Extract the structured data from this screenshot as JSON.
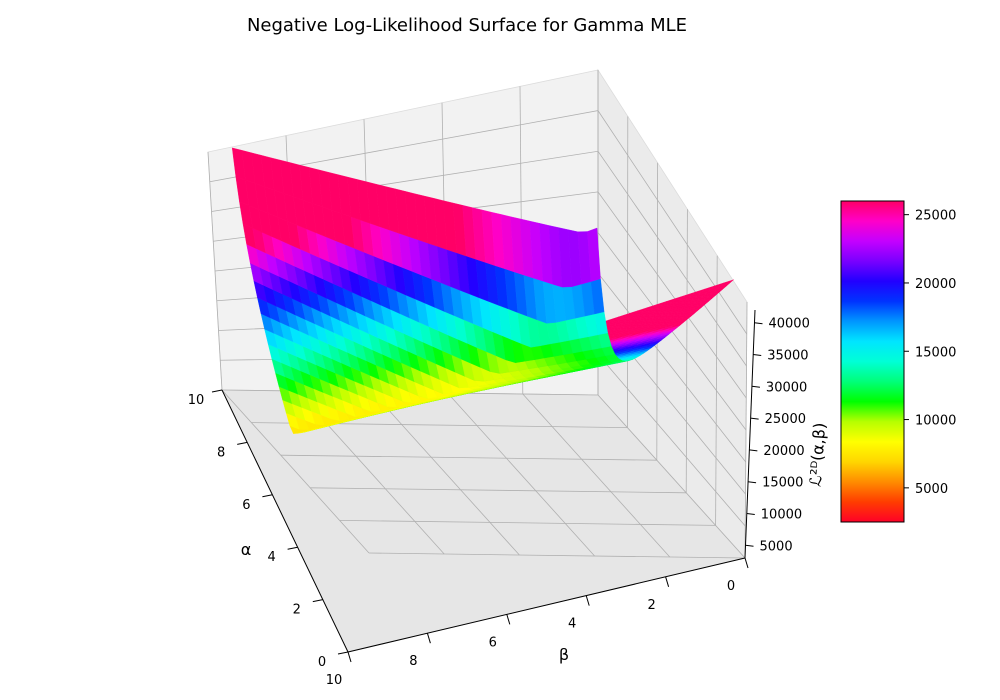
{
  "chart_data": {
    "type": "surface",
    "title": "Negative Log-Likelihood Surface for Gamma MLE",
    "xlabel": "β",
    "ylabel": "α",
    "zlabel": "ℒ²ᴰ(α,β)",
    "xlim": [
      0,
      10
    ],
    "ylim": [
      0,
      10
    ],
    "zlim": [
      3000,
      42000
    ],
    "x_ticks": [
      "0",
      "2",
      "4",
      "6",
      "8",
      "10"
    ],
    "y_ticks": [
      "0",
      "2",
      "4",
      "6",
      "8",
      "10"
    ],
    "z_ticks": [
      "5000",
      "10000",
      "15000",
      "20000",
      "25000",
      "30000",
      "35000",
      "40000"
    ],
    "colormap": "gist_rainbow",
    "grid": true,
    "colorbar": {
      "position": "right",
      "range": [
        2500,
        26000
      ],
      "ticks": [
        "5000",
        "10000",
        "15000",
        "20000",
        "25000"
      ],
      "stops": [
        "#ff0028",
        "#ff3d00",
        "#ff8c00",
        "#ffd600",
        "#ffff00",
        "#b6ff00",
        "#00ff00",
        "#00ff7a",
        "#00ffd6",
        "#00e5ff",
        "#0096ff",
        "#0033ff",
        "#2200ff",
        "#7a00ff",
        "#c400ff",
        "#ff00c8",
        "#ff0066"
      ]
    },
    "surface_points": [
      {
        "alpha": 10,
        "beta": 10,
        "nll": 3800
      },
      {
        "alpha": 10,
        "beta": 5,
        "nll": 13500
      },
      {
        "alpha": 10,
        "beta": 0.3,
        "nll": 26000
      },
      {
        "alpha": 5,
        "beta": 0.3,
        "nll": 13000
      },
      {
        "alpha": 0.3,
        "beta": 0.3,
        "nll": 40000
      },
      {
        "alpha": 0.3,
        "beta": 10,
        "nll": 4000
      }
    ]
  }
}
